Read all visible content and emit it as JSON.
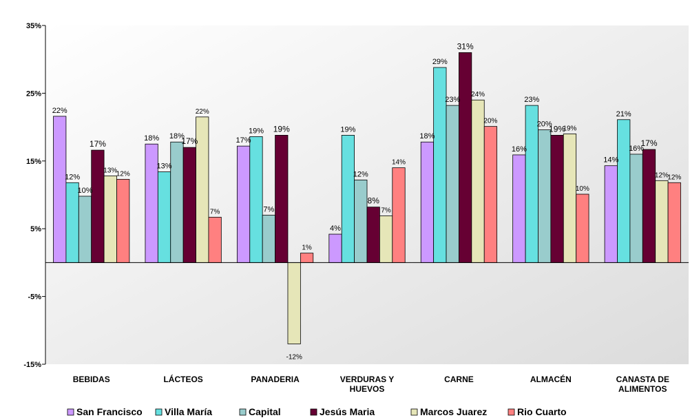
{
  "chart_data": {
    "type": "bar",
    "categories": [
      [
        "BEBIDAS"
      ],
      [
        "LÁCTEOS"
      ],
      [
        "PANADERIA"
      ],
      [
        "VERDURAS Y",
        "HUEVOS"
      ],
      [
        "CARNE"
      ],
      [
        "ALMACÉN"
      ],
      [
        "CANASTA DE",
        "ALIMENTOS"
      ]
    ],
    "series": [
      {
        "name": "San Francisco",
        "color": "#CC99FF",
        "values": [
          0.216,
          0.175,
          0.172,
          0.042,
          0.178,
          0.159,
          0.143
        ],
        "labels": [
          "22%",
          "18%",
          "17%",
          "4%",
          "18%",
          "16%",
          "14%"
        ]
      },
      {
        "name": "Villa María",
        "color": "#66E0E0",
        "values": [
          0.118,
          0.134,
          0.186,
          0.188,
          0.288,
          0.232,
          0.211
        ],
        "labels": [
          "12%",
          "13%",
          "19%",
          "19%",
          "29%",
          "23%",
          "21%"
        ]
      },
      {
        "name": "Capital",
        "color": "#99CCCC",
        "values": [
          0.098,
          0.178,
          0.07,
          0.122,
          0.232,
          0.196,
          0.16
        ],
        "labels": [
          "10%",
          "18%",
          "7%",
          "12%",
          "23%",
          "20%",
          "16%"
        ]
      },
      {
        "name": "Jesús Maria",
        "color": "#660033",
        "values": [
          0.166,
          0.17,
          0.188,
          0.082,
          0.31,
          0.188,
          0.167
        ],
        "labels": [
          "17%",
          "17%",
          "19%",
          "8%",
          "31%",
          "19%",
          "17%"
        ]
      },
      {
        "name": "Marcos Juarez",
        "color": "#E6E6B8",
        "values": [
          0.128,
          0.215,
          -0.12,
          0.069,
          0.24,
          0.19,
          0.121
        ],
        "labels": [
          "13%",
          "22%",
          "-12%",
          "7%",
          "24%",
          "19%",
          "12%"
        ]
      },
      {
        "name": "Rio Cuarto",
        "color": "#FF8080",
        "values": [
          0.123,
          0.067,
          0.014,
          0.14,
          0.201,
          0.101,
          0.118
        ],
        "labels": [
          "12%",
          "7%",
          "1%",
          "14%",
          "20%",
          "10%",
          "12%"
        ]
      }
    ],
    "y_ticks": [
      {
        "value": 0.35,
        "label": "35%"
      },
      {
        "value": 0.25,
        "label": "25%"
      },
      {
        "value": 0.15,
        "label": "15%"
      },
      {
        "value": 0.05,
        "label": "5%"
      },
      {
        "value": -0.05,
        "label": "-5%"
      },
      {
        "value": -0.15,
        "label": "-15%"
      }
    ],
    "ylim": [
      -0.15,
      0.35
    ],
    "grid": false,
    "legend_position": "bottom",
    "title": "",
    "xlabel": "",
    "ylabel": ""
  }
}
